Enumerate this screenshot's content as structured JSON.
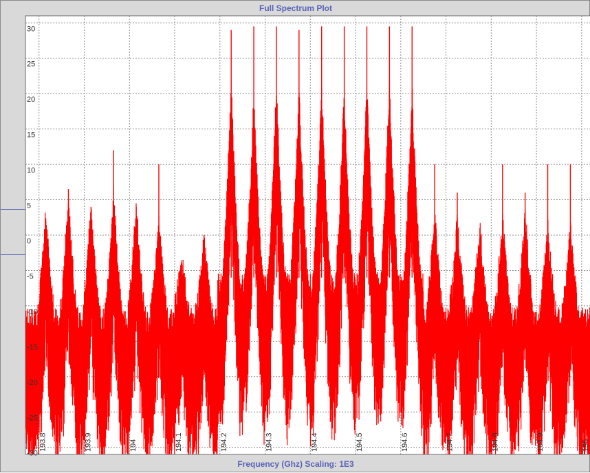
{
  "chart_data": {
    "type": "line",
    "title": "Full Spectrum Plot",
    "xlabel": "Frequency (Ghz)  Scaling: 1E3",
    "ylabel": "",
    "xlim": [
      193.77,
      195.02
    ],
    "ylim": [
      -31,
      31
    ],
    "grid": true,
    "line_color": "#ff0000",
    "x_ticks": [
      "193.8",
      "193.9",
      "194",
      "194.1",
      "194.2",
      "194.3",
      "194.4",
      "194.5",
      "194.6",
      "194.7",
      "194.8",
      "194.9",
      "195"
    ],
    "x_tick_values": [
      193.8,
      193.9,
      194.0,
      194.1,
      194.2,
      194.3,
      194.4,
      194.5,
      194.6,
      194.7,
      194.8,
      194.9,
      195.0
    ],
    "y_ticks": [
      "30",
      "25",
      "20",
      "15",
      "10",
      "5",
      "0",
      "-5",
      "-10",
      "-15",
      "-20",
      "-25",
      "-30"
    ],
    "y_tick_values": [
      30,
      25,
      20,
      15,
      10,
      5,
      0,
      -5,
      -10,
      -15,
      -20,
      -25,
      -30
    ],
    "series": [
      {
        "peaks": [
          {
            "x": 193.815,
            "top": 2,
            "env": 2
          },
          {
            "x": 193.865,
            "top": 6.5,
            "env": 4
          },
          {
            "x": 193.915,
            "top": 4,
            "env": 3
          },
          {
            "x": 193.965,
            "top": 12,
            "env": 4
          },
          {
            "x": 194.015,
            "top": 4,
            "env": 3
          },
          {
            "x": 194.065,
            "top": 10,
            "env": 1
          },
          {
            "x": 194.115,
            "top": -4,
            "env": -4
          },
          {
            "x": 194.165,
            "top": 0,
            "env": -2
          },
          {
            "x": 194.225,
            "top": 29,
            "env": 20
          },
          {
            "x": 194.275,
            "top": 29.5,
            "env": 18
          },
          {
            "x": 194.325,
            "top": 29.5,
            "env": 20
          },
          {
            "x": 194.375,
            "top": 29,
            "env": 19
          },
          {
            "x": 194.425,
            "top": 29.5,
            "env": 20
          },
          {
            "x": 194.475,
            "top": 29.5,
            "env": 19
          },
          {
            "x": 194.525,
            "top": 29.5,
            "env": 20
          },
          {
            "x": 194.575,
            "top": 29.5,
            "env": 20
          },
          {
            "x": 194.625,
            "top": 29.5,
            "env": 19
          },
          {
            "x": 194.675,
            "top": 10,
            "env": 2
          },
          {
            "x": 194.725,
            "top": 6,
            "env": 1
          },
          {
            "x": 194.775,
            "top": 1,
            "env": 0
          },
          {
            "x": 194.825,
            "top": 10,
            "env": 1
          },
          {
            "x": 194.875,
            "top": 6,
            "env": 2
          },
          {
            "x": 194.925,
            "top": 10,
            "env": 0
          },
          {
            "x": 194.975,
            "top": 10,
            "env": 0
          }
        ]
      }
    ]
  }
}
